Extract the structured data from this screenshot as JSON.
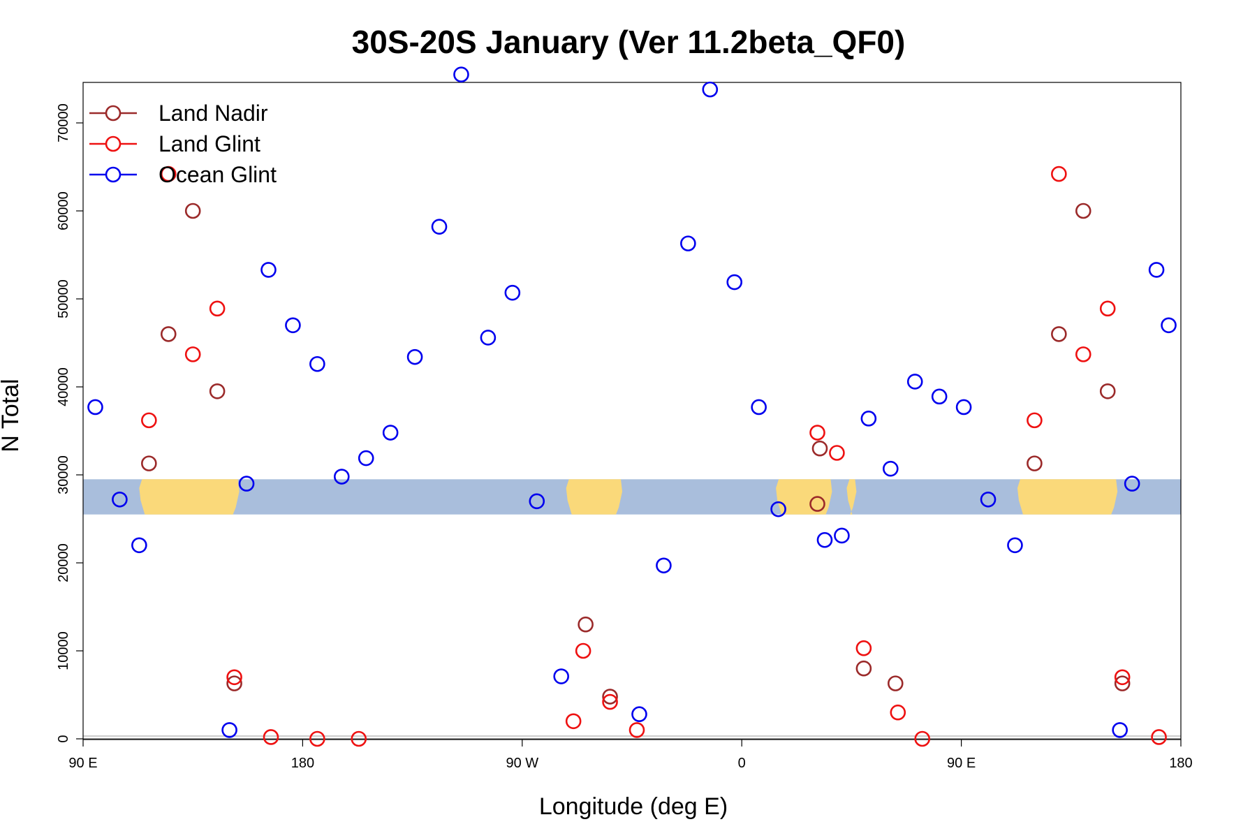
{
  "chart_data": {
    "type": "scatter",
    "title": "30S-20S January (Ver 11.2beta_QF0)",
    "xlabel": "Longitude (deg E)",
    "ylabel": "N Total",
    "xlim": [
      90,
      540
    ],
    "ylim": [
      0,
      75000
    ],
    "x_ticks": [
      {
        "value": 90,
        "label": "90 E"
      },
      {
        "value": 180,
        "label": "180"
      },
      {
        "value": 270,
        "label": "90 W"
      },
      {
        "value": 360,
        "label": "0"
      },
      {
        "value": 450,
        "label": "90 E"
      },
      {
        "value": 540,
        "label": "180"
      }
    ],
    "y_ticks": [
      0,
      10000,
      20000,
      30000,
      40000,
      50000,
      60000,
      70000
    ],
    "map_band": {
      "ymin": 25500,
      "ymax": 29500,
      "ocean_color": "#a9bedc",
      "land_color": "#fad97a"
    },
    "legend": {
      "position": "top-left"
    },
    "series": [
      {
        "name": "Land Nadir",
        "color": "#9b2a2a",
        "points": [
          [
            117,
            31300
          ],
          [
            125,
            46000
          ],
          [
            135,
            60000
          ],
          [
            145,
            39500
          ],
          [
            152,
            6300
          ],
          [
            296,
            13000
          ],
          [
            306,
            4800
          ],
          [
            391,
            26700
          ],
          [
            392,
            33000
          ],
          [
            410,
            8000
          ],
          [
            423,
            6300
          ],
          [
            480,
            31300
          ],
          [
            490,
            46000
          ],
          [
            500,
            60000
          ],
          [
            510,
            39500
          ],
          [
            516,
            6300
          ]
        ]
      },
      {
        "name": "Land Glint",
        "color": "#ee1111",
        "points": [
          [
            117,
            36200
          ],
          [
            125,
            64200
          ],
          [
            135,
            43700
          ],
          [
            145,
            48900
          ],
          [
            152,
            7000
          ],
          [
            167,
            200
          ],
          [
            186,
            0
          ],
          [
            203,
            0
          ],
          [
            291,
            2000
          ],
          [
            295,
            10000
          ],
          [
            306,
            4200
          ],
          [
            317,
            1000
          ],
          [
            391,
            34800
          ],
          [
            399,
            32500
          ],
          [
            410,
            10300
          ],
          [
            424,
            3000
          ],
          [
            434,
            0
          ],
          [
            480,
            36200
          ],
          [
            490,
            64200
          ],
          [
            500,
            43700
          ],
          [
            510,
            48900
          ],
          [
            516,
            7000
          ],
          [
            531,
            200
          ]
        ]
      },
      {
        "name": "Ocean Glint",
        "color": "#0000ee",
        "points": [
          [
            95,
            37700
          ],
          [
            105,
            27200
          ],
          [
            113,
            22000
          ],
          [
            150,
            1000
          ],
          [
            157,
            29000
          ],
          [
            166,
            53300
          ],
          [
            176,
            47000
          ],
          [
            186,
            42600
          ],
          [
            196,
            29800
          ],
          [
            206,
            31900
          ],
          [
            216,
            34800
          ],
          [
            226,
            43400
          ],
          [
            236,
            58200
          ],
          [
            245,
            75500
          ],
          [
            256,
            45600
          ],
          [
            266,
            50700
          ],
          [
            276,
            27000
          ],
          [
            286,
            7100
          ],
          [
            318,
            2800
          ],
          [
            328,
            19700
          ],
          [
            338,
            56300
          ],
          [
            347,
            73800
          ],
          [
            357,
            51900
          ],
          [
            367,
            37700
          ],
          [
            375,
            26100
          ],
          [
            394,
            22600
          ],
          [
            401,
            23100
          ],
          [
            412,
            36400
          ],
          [
            421,
            30700
          ],
          [
            431,
            40600
          ],
          [
            441,
            38900
          ],
          [
            451,
            37700
          ],
          [
            461,
            27200
          ],
          [
            472,
            22000
          ],
          [
            515,
            1000
          ],
          [
            520,
            29000
          ],
          [
            530,
            53300
          ],
          [
            535,
            47000
          ]
        ]
      }
    ]
  }
}
